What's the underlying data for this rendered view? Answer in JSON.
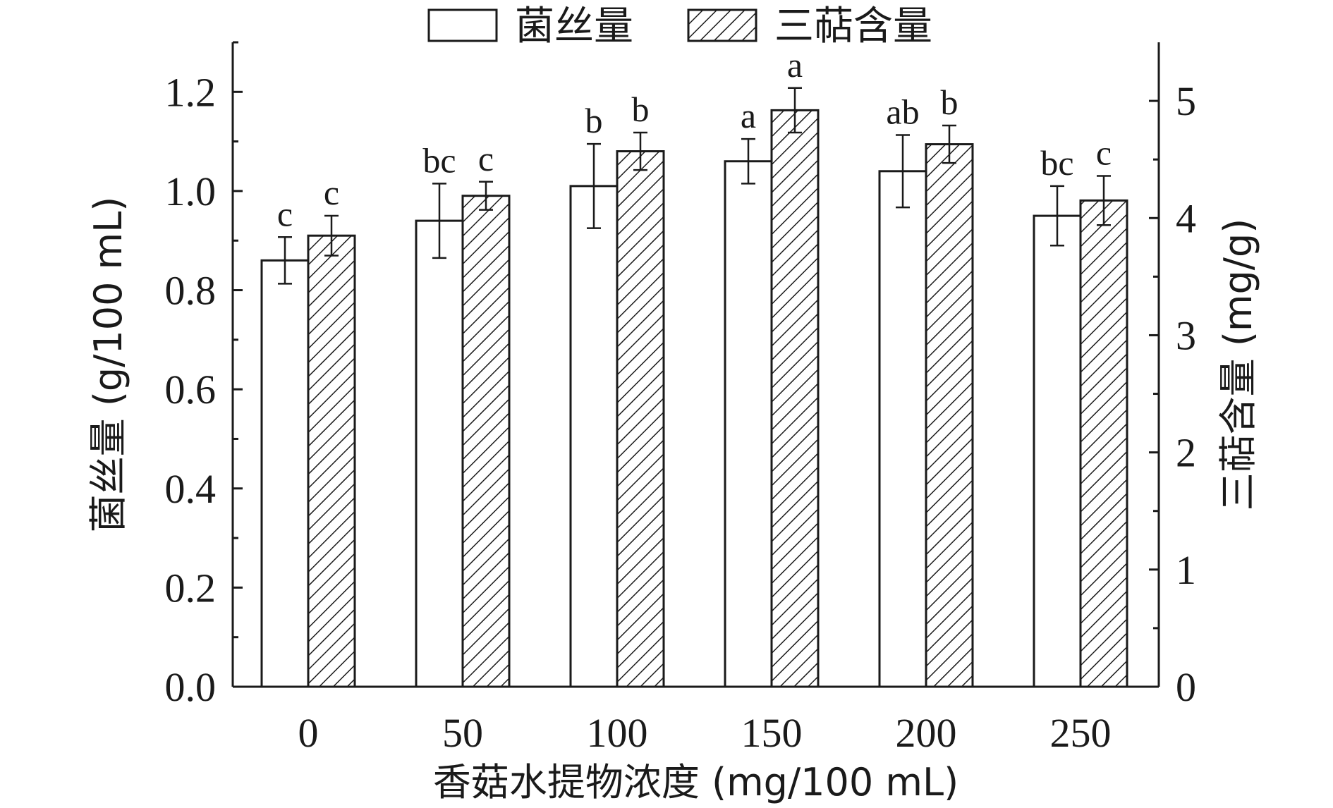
{
  "chart_data": {
    "type": "bar",
    "title": "",
    "xlabel": "香菇水提物浓度 (mg/100 mL)",
    "ylabel_left": "菌丝量 (g/100 mL)",
    "ylabel_right": "三萜含量 (mg/g)",
    "categories": [
      "0",
      "50",
      "100",
      "150",
      "200",
      "250"
    ],
    "ylim_left": [
      0,
      1.3
    ],
    "ylim_right": [
      0,
      5.5
    ],
    "yticks_left": [
      "0.0",
      "0.2",
      "0.4",
      "0.6",
      "0.8",
      "1.0",
      "1.2"
    ],
    "yticks_right": [
      "0",
      "1",
      "2",
      "3",
      "4",
      "5"
    ],
    "legend_position": "top",
    "grid": false,
    "series": [
      {
        "name": "菌丝量",
        "axis": "left",
        "fill": "white",
        "values": [
          0.86,
          0.94,
          1.01,
          1.06,
          1.04,
          0.95
        ],
        "errors": [
          0.047,
          0.075,
          0.085,
          0.045,
          0.073,
          0.06
        ],
        "labels": [
          "c",
          "bc",
          "b",
          "a",
          "ab",
          "bc"
        ]
      },
      {
        "name": "三萜含量",
        "axis": "right",
        "fill": "hatch",
        "values": [
          3.85,
          4.19,
          4.57,
          4.92,
          4.63,
          4.15
        ],
        "errors": [
          0.17,
          0.12,
          0.16,
          0.19,
          0.16,
          0.21
        ],
        "labels": [
          "c",
          "c",
          "b",
          "a",
          "b",
          "c"
        ]
      }
    ]
  }
}
